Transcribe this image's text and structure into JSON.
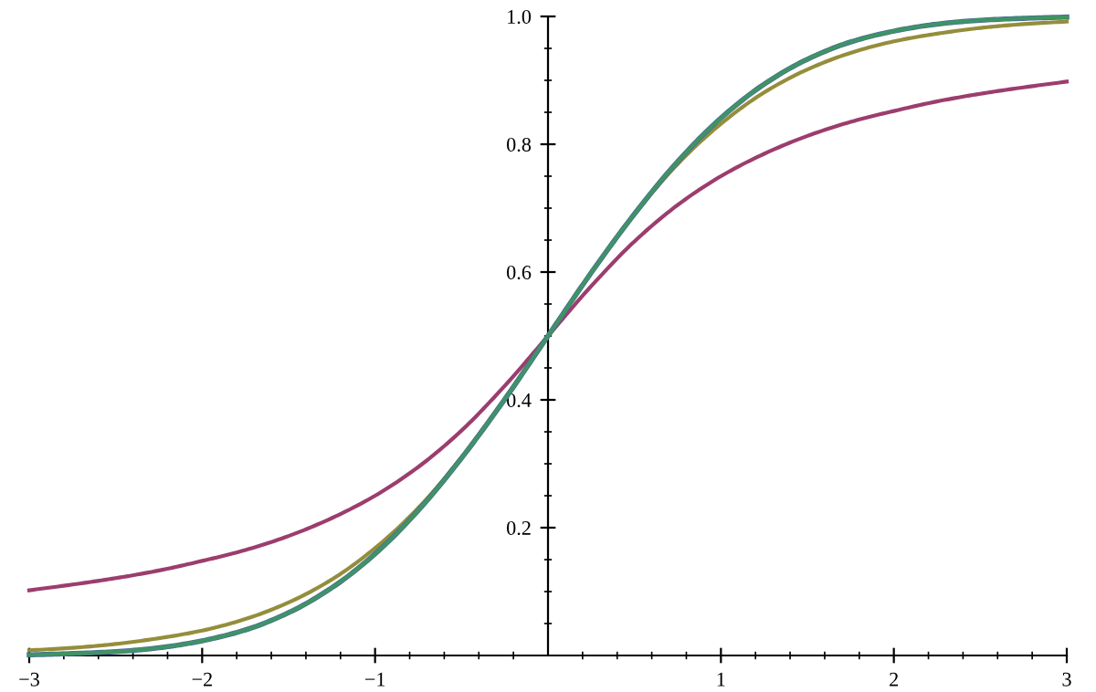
{
  "chart_data": {
    "type": "line",
    "x": [
      -3,
      -2.75,
      -2.5,
      -2.25,
      -2,
      -1.75,
      -1.5,
      -1.25,
      -1,
      -0.75,
      -0.5,
      -0.25,
      0,
      0.25,
      0.5,
      0.75,
      1,
      1.25,
      1.5,
      1.75,
      2,
      2.25,
      2.5,
      2.75,
      3
    ],
    "series": [
      {
        "color": "#9c3d6e",
        "values": [
          0.102,
          0.111,
          0.121,
          0.133,
          0.148,
          0.165,
          0.187,
          0.215,
          0.25,
          0.295,
          0.352,
          0.422,
          0.5,
          0.578,
          0.648,
          0.705,
          0.75,
          0.785,
          0.813,
          0.835,
          0.852,
          0.867,
          0.879,
          0.889,
          0.898
        ]
      },
      {
        "color": "#948e3c",
        "values": [
          0.008,
          0.012,
          0.018,
          0.027,
          0.039,
          0.057,
          0.083,
          0.119,
          0.168,
          0.231,
          0.31,
          0.401,
          0.5,
          0.599,
          0.69,
          0.769,
          0.832,
          0.881,
          0.917,
          0.943,
          0.961,
          0.973,
          0.982,
          0.988,
          0.992
        ]
      },
      {
        "color": "#4a6a9c",
        "values": [
          0.001,
          0.003,
          0.006,
          0.012,
          0.023,
          0.04,
          0.067,
          0.106,
          0.159,
          0.227,
          0.309,
          0.401,
          0.5,
          0.599,
          0.691,
          0.773,
          0.841,
          0.894,
          0.933,
          0.96,
          0.977,
          0.988,
          0.994,
          0.997,
          0.999
        ]
      },
      {
        "color": "#3f9364",
        "values": [
          0.001,
          0.003,
          0.006,
          0.012,
          0.023,
          0.04,
          0.067,
          0.106,
          0.159,
          0.227,
          0.309,
          0.401,
          0.5,
          0.599,
          0.691,
          0.773,
          0.841,
          0.894,
          0.933,
          0.96,
          0.977,
          0.988,
          0.994,
          0.997,
          0.999
        ]
      }
    ],
    "xlim": [
      -3,
      3
    ],
    "ylim": [
      0,
      1.0
    ],
    "xticks": [
      {
        "value": -3,
        "label": "−3"
      },
      {
        "value": -2.8,
        "label": null
      },
      {
        "value": -2.6,
        "label": null
      },
      {
        "value": -2.4,
        "label": null
      },
      {
        "value": -2.2,
        "label": null
      },
      {
        "value": -2,
        "label": "−2"
      },
      {
        "value": -1.8,
        "label": null
      },
      {
        "value": -1.6,
        "label": null
      },
      {
        "value": -1.4,
        "label": null
      },
      {
        "value": -1.2,
        "label": null
      },
      {
        "value": -1,
        "label": "−1"
      },
      {
        "value": -0.8,
        "label": null
      },
      {
        "value": -0.6,
        "label": null
      },
      {
        "value": -0.4,
        "label": null
      },
      {
        "value": -0.2,
        "label": null
      },
      {
        "value": 0.2,
        "label": null
      },
      {
        "value": 0.4,
        "label": null
      },
      {
        "value": 0.6,
        "label": null
      },
      {
        "value": 0.8,
        "label": null
      },
      {
        "value": 1,
        "label": "1"
      },
      {
        "value": 1.2,
        "label": null
      },
      {
        "value": 1.4,
        "label": null
      },
      {
        "value": 1.6,
        "label": null
      },
      {
        "value": 1.8,
        "label": null
      },
      {
        "value": 2,
        "label": "2"
      },
      {
        "value": 2.2,
        "label": null
      },
      {
        "value": 2.4,
        "label": null
      },
      {
        "value": 2.6,
        "label": null
      },
      {
        "value": 2.8,
        "label": null
      },
      {
        "value": 3,
        "label": "3"
      }
    ],
    "yticks": [
      {
        "value": 0.05,
        "label": null
      },
      {
        "value": 0.1,
        "label": null
      },
      {
        "value": 0.15,
        "label": null
      },
      {
        "value": 0.2,
        "label": "0.2"
      },
      {
        "value": 0.25,
        "label": null
      },
      {
        "value": 0.3,
        "label": null
      },
      {
        "value": 0.35,
        "label": null
      },
      {
        "value": 0.4,
        "label": "0.4"
      },
      {
        "value": 0.45,
        "label": null
      },
      {
        "value": 0.5,
        "label": null
      },
      {
        "value": 0.55,
        "label": null
      },
      {
        "value": 0.6,
        "label": "0.6"
      },
      {
        "value": 0.65,
        "label": null
      },
      {
        "value": 0.7,
        "label": null
      },
      {
        "value": 0.75,
        "label": null
      },
      {
        "value": 0.8,
        "label": "0.8"
      },
      {
        "value": 0.85,
        "label": null
      },
      {
        "value": 0.9,
        "label": null
      },
      {
        "value": 0.95,
        "label": null
      },
      {
        "value": 1.0,
        "label": "1.0"
      }
    ],
    "grid": false,
    "marker": "none",
    "line_style": "solid"
  }
}
